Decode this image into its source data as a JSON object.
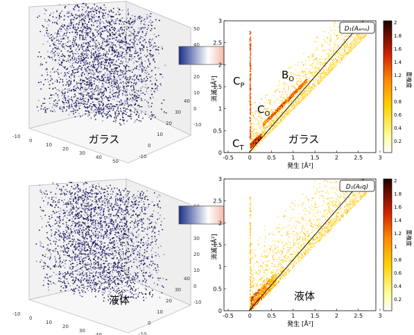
{
  "colors": {
    "point_dark": "#1a1a5a",
    "point_light": "#8888bb",
    "arrow_blue": "#1c2f8a",
    "arrow_orange": "#e8603a",
    "heat_low": "#ffff66",
    "heat_mid": "#ff9900",
    "heat_high": "#cc2200",
    "heat_max": "#330000"
  },
  "panels": {
    "glass": {
      "cloud_label": "ガラス",
      "cube_ticks_x": [
        "-10",
        "0",
        "10",
        "20",
        "30",
        "40",
        "50"
      ],
      "cube_ticks_y": [
        "-10",
        "0",
        "10",
        "20",
        "30",
        "40"
      ],
      "cube_ticks_z": [
        "50",
        "40",
        "30",
        "20",
        "10",
        "0",
        "-10"
      ],
      "plot_title": "D₁(Aₐₘₒ)",
      "x_axis_label": "発生 [Å²]",
      "y_axis_label": "消滅 [Å²]",
      "x_ticks": [
        "-0.5",
        "0",
        "0.5",
        "1",
        "1.5",
        "2",
        "2.5",
        "3"
      ],
      "y_ticks": [
        "0",
        "0.5",
        "1",
        "1.5",
        "2",
        "2.5",
        "3"
      ],
      "annotation_cp": "C_P",
      "annotation_bo": "B_O",
      "annotation_co": "C_O",
      "annotation_ct": "C_T",
      "plot_label": "ガラス",
      "colorbar_label": "重複度",
      "colorbar_ticks": [
        "2",
        "1.8",
        "1.6",
        "1.4",
        "1.2",
        "1",
        "0.8",
        "0.6",
        "0.4",
        "0.2"
      ]
    },
    "liquid": {
      "cloud_label": "液体",
      "cube_ticks_x": [
        "-10",
        "0",
        "10",
        "20",
        "30",
        "40",
        "50"
      ],
      "cube_ticks_y": [
        "-10",
        "0",
        "10",
        "20",
        "30",
        "40"
      ],
      "cube_ticks_z": [
        "50",
        "40",
        "30",
        "20",
        "10",
        "0",
        "-10"
      ],
      "plot_title": "D₁(Aₗᵢq)",
      "x_axis_label": "発生 [Å²]",
      "y_axis_label": "消滅 [Å²]",
      "x_ticks": [
        "-0.5",
        "0",
        "0.5",
        "1",
        "1.5",
        "2",
        "2.5",
        "3"
      ],
      "y_ticks": [
        "0",
        "0.5",
        "1",
        "1.5",
        "2",
        "2.5",
        "3"
      ],
      "plot_label": "液体",
      "colorbar_label": "重複度",
      "colorbar_ticks": [
        "2",
        "1.8",
        "1.6",
        "1.4",
        "1.2",
        "1",
        "0.8",
        "0.6",
        "0.4",
        "0.2"
      ]
    }
  }
}
